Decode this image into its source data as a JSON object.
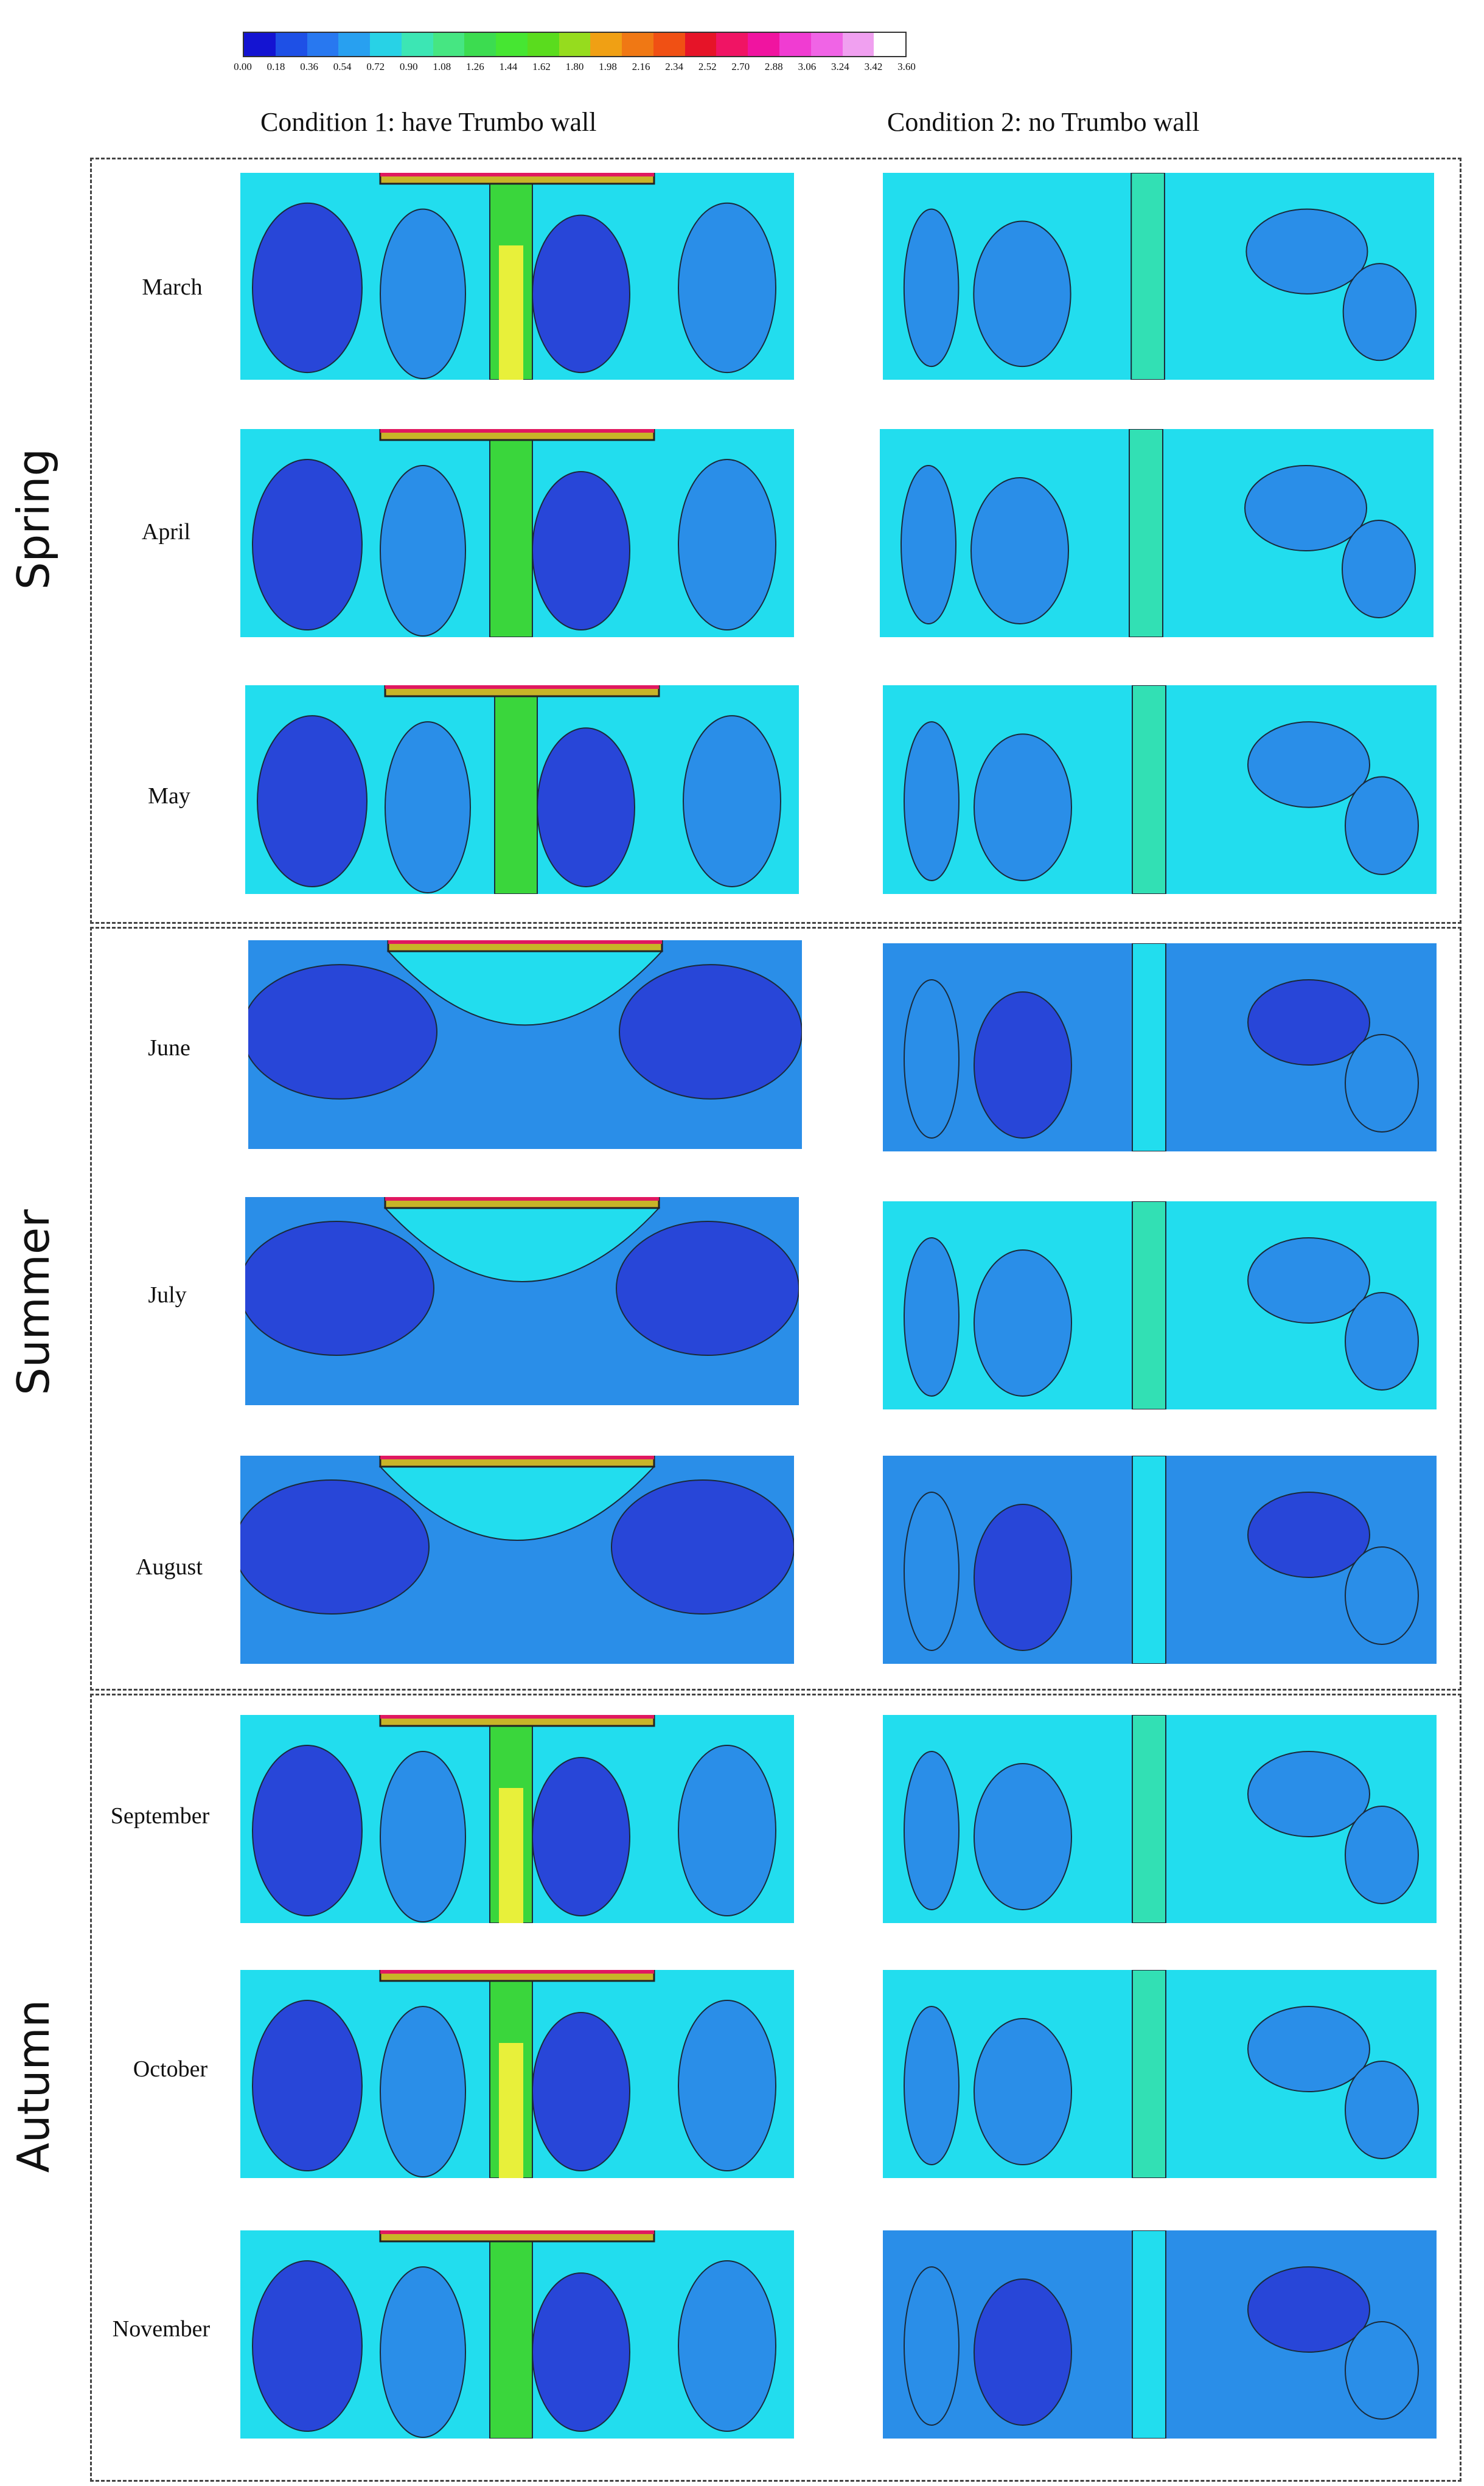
{
  "colorbar": {
    "ticks": [
      "0.00",
      "0.18",
      "0.36",
      "0.54",
      "0.72",
      "0.90",
      "1.08",
      "1.26",
      "1.44",
      "1.62",
      "1.80",
      "1.98",
      "2.16",
      "2.34",
      "2.52",
      "2.70",
      "2.88",
      "3.06",
      "3.24",
      "3.42",
      "3.60"
    ],
    "colors": [
      "#1414d2",
      "#1e50e6",
      "#2878f0",
      "#28a0f0",
      "#28d2e6",
      "#3ce6b4",
      "#46e682",
      "#3cdc50",
      "#46e632",
      "#5adc1e",
      "#96dc1e",
      "#f0a014",
      "#f07814",
      "#f05014",
      "#e61428",
      "#f01464",
      "#f014a0",
      "#f03cd2",
      "#f064e6",
      "#f0a0f0",
      "#ffffff"
    ]
  },
  "conditions": [
    "Condition 1: have Trumbo wall",
    "Condition 2: no Trumbo wall"
  ],
  "seasons": [
    {
      "name": "Spring",
      "months": [
        "March",
        "April",
        "May"
      ]
    },
    {
      "name": "Summer",
      "months": [
        "June",
        "July",
        "August"
      ]
    },
    {
      "name": "Autumn",
      "months": [
        "September",
        "October",
        "November"
      ]
    }
  ],
  "palette": {
    "deep": "#2846d8",
    "mid": "#2a8ee8",
    "cyan": "#22ddee",
    "teal": "#32e0b4",
    "green": "#3ad63c",
    "yellow": "#e8f03a",
    "wall": "#c8b428",
    "wallTop": "#e01860"
  },
  "panels": {
    "with_wall": [
      "wall-green",
      "wall-blue",
      "wall-blue",
      "wall-deep",
      "wall-deep",
      "wall-deep",
      "wall-green",
      "wall-green",
      "wall-blue"
    ],
    "no_wall": [
      "cyan",
      "cyan",
      "cyan",
      "mid",
      "cyan",
      "mid",
      "cyan",
      "cyan",
      "mid"
    ]
  }
}
